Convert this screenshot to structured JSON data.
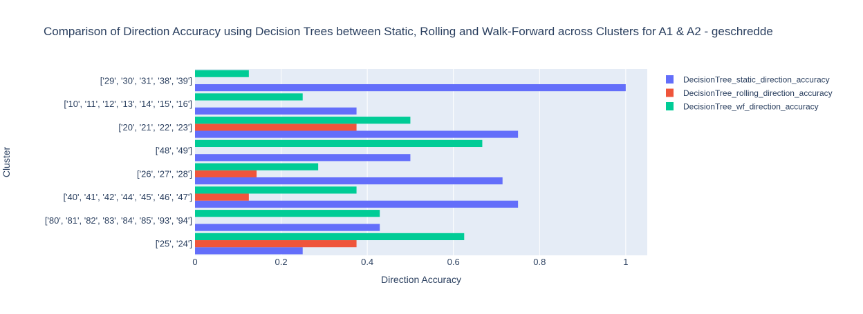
{
  "chart_data": {
    "type": "bar",
    "orientation": "horizontal",
    "title": "Comparison of Direction Accuracy using Decision Trees between Static, Rolling and Walk-Forward across Clusters for A1 & A2 -  geschredde",
    "xlabel": "Direction Accuracy",
    "ylabel": "Cluster",
    "xlim": [
      0,
      1.05
    ],
    "xticks": [
      0,
      0.2,
      0.4,
      0.6,
      0.8,
      1
    ],
    "xtick_labels": [
      "0",
      "0.2",
      "0.4",
      "0.6",
      "0.8",
      "1"
    ],
    "grid": true,
    "legend_position": "top-right, outside plot",
    "plot_background": "#e5ecf6",
    "categories": [
      "['25', '24']",
      "['80', '81', '82', '83', '84', '85', '93', '94']",
      "['40', '41', '42', '44', '45', '46', '47']",
      "['26', '27', '28']",
      "['48', '49']",
      "['20', '21', '22', '23']",
      "['10', '11', '12', '13', '14', '15', '16']",
      "['29', '30', '31', '38', '39']"
    ],
    "series": [
      {
        "name": "DecisionTree_static_direction_accuracy",
        "color": "#636efa",
        "values": [
          0.25,
          0.429,
          0.75,
          0.714,
          0.5,
          0.75,
          0.375,
          1.0
        ]
      },
      {
        "name": "DecisionTree_rolling_direction_accuracy",
        "color": "#ef553b",
        "values": [
          0.375,
          0,
          0.125,
          0.143,
          0,
          0.375,
          0,
          0
        ]
      },
      {
        "name": "DecisionTree_wf_direction_accuracy",
        "color": "#00cc96",
        "values": [
          0.625,
          0.429,
          0.375,
          0.286,
          0.667,
          0.5,
          0.25,
          0.125
        ]
      }
    ]
  }
}
